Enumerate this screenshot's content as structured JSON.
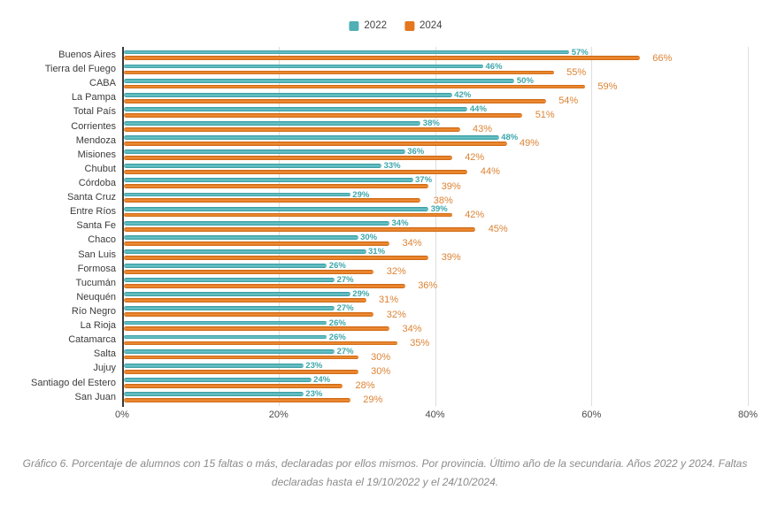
{
  "legend": {
    "items": [
      {
        "label": "2022",
        "color": "#4FAFB4"
      },
      {
        "label": "2024",
        "color": "#E4771E"
      }
    ]
  },
  "chart_data": {
    "type": "bar",
    "orientation": "horizontal",
    "title": "",
    "categories": [
      "Buenos Aires",
      "Tierra del Fuego",
      "CABA",
      "La Pampa",
      "Total País",
      "Corrientes",
      "Mendoza",
      "Misiones",
      "Chubut",
      "Córdoba",
      "Santa Cruz",
      "Entre Ríos",
      "Santa Fe",
      "Chaco",
      "San Luis",
      "Formosa",
      "Tucumán",
      "Neuquén",
      "Río Negro",
      "La Rioja",
      "Catamarca",
      "Salta",
      "Jujuy",
      "Santiago del Estero",
      "San Juan"
    ],
    "series": [
      {
        "name": "2022",
        "color": "#4FAFB4",
        "values": [
          57,
          46,
          50,
          42,
          44,
          38,
          48,
          36,
          33,
          37,
          29,
          39,
          34,
          30,
          31,
          26,
          27,
          29,
          27,
          26,
          26,
          27,
          23,
          24,
          23
        ]
      },
      {
        "name": "2024",
        "color": "#E4771E",
        "values": [
          66,
          55,
          59,
          54,
          51,
          43,
          49,
          42,
          44,
          39,
          38,
          42,
          45,
          34,
          39,
          32,
          36,
          31,
          32,
          34,
          35,
          30,
          30,
          28,
          29
        ]
      }
    ],
    "value_suffix": "%",
    "xlim": [
      0,
      80
    ],
    "xticks": [
      "0%",
      "20%",
      "40%",
      "60%",
      "80%"
    ],
    "grid": "vertical-light",
    "legend_position": "top-center"
  },
  "caption": {
    "line1": "Gráfico 6. Porcentaje de alumnos con 15 faltas o más, declaradas por ellos mismos. Por provincia. Último año de la secundaria. Años 2022 y 2024. Faltas",
    "line2": "declaradas hasta el 19/10/2022 y el 24/10/2024."
  }
}
